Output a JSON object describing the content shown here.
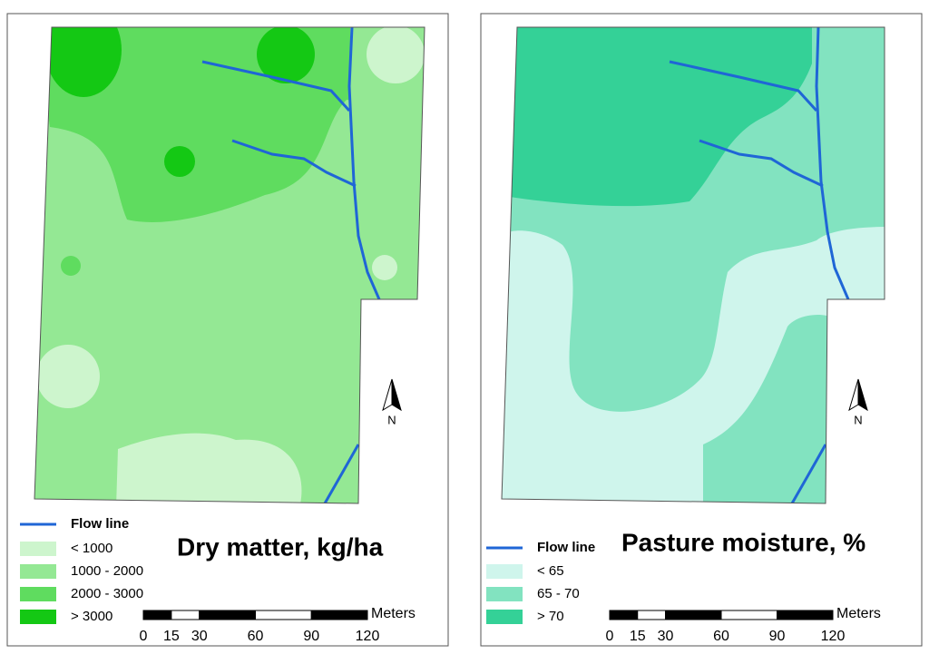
{
  "panels": [
    {
      "title": "Dry matter, kg/ha",
      "flow_line": {
        "label": "Flow line",
        "color": "#1f66d6"
      },
      "legend": [
        {
          "label": "< 1000",
          "color": "#cdf5cd"
        },
        {
          "label": "1000 - 2000",
          "color": "#94e894"
        },
        {
          "label": "2000 - 3000",
          "color": "#5fdc5f"
        },
        {
          "label": "> 3000",
          "color": "#14c814"
        }
      ],
      "scale": {
        "unit": "Meters",
        "ticks": [
          0,
          15,
          30,
          60,
          90,
          120
        ]
      },
      "north": "N"
    },
    {
      "title": "Pasture moisture, %",
      "flow_line": {
        "label": "Flow line",
        "color": "#1f66d6"
      },
      "legend": [
        {
          "label": "< 65",
          "color": "#cff5ec"
        },
        {
          "label": "65 - 70",
          "color": "#82e3c0"
        },
        {
          "label": "> 70",
          "color": "#34d197"
        }
      ],
      "scale": {
        "unit": "Meters",
        "ticks": [
          0,
          15,
          30,
          60,
          90,
          120
        ]
      },
      "north": "N"
    }
  ]
}
